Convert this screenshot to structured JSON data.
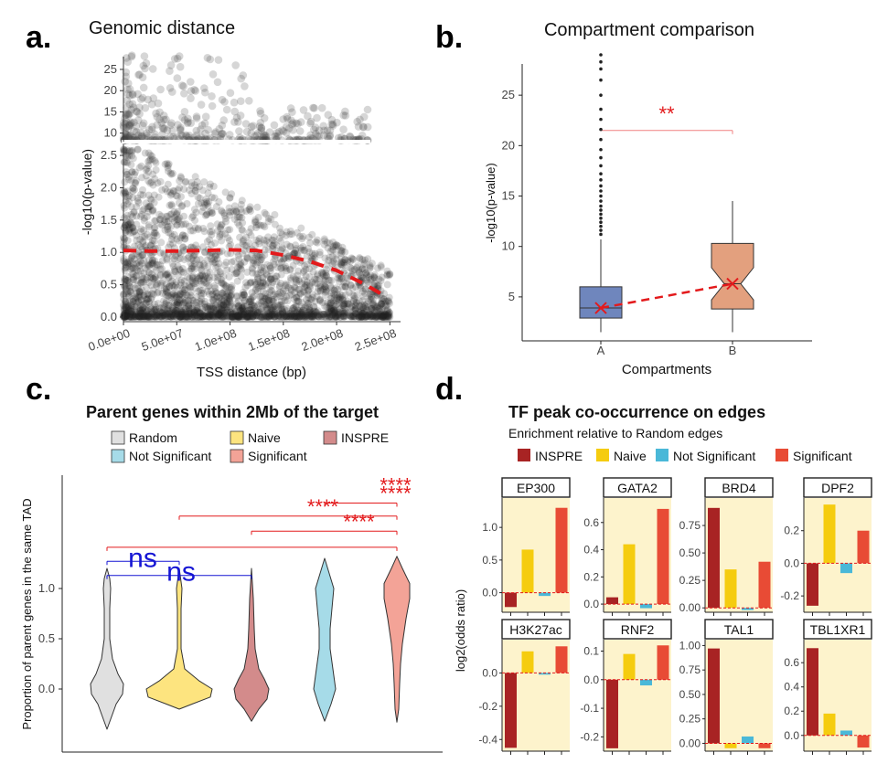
{
  "panels": [
    {
      "letter": "a."
    },
    {
      "letter": "b."
    },
    {
      "letter": "c."
    },
    {
      "letter": "d."
    }
  ],
  "chart_data": [
    {
      "type": "scatter",
      "title": "Genomic distance",
      "xlabel": "TSS distance (bp)",
      "ylabel": "-log10(p-value)",
      "xlim": [
        0,
        250000000
      ],
      "xticks": [
        0,
        50000000,
        100000000,
        150000000,
        200000000,
        250000000
      ],
      "xtick_labels": [
        "0.0e+00",
        "5.0e+07",
        "1.0e+08",
        "1.5e+08",
        "2.0e+08",
        "2.5e+08"
      ],
      "y_axis": "broken",
      "ylim_upper": [
        8,
        28
      ],
      "yticks_upper": [
        10,
        15,
        20,
        25
      ],
      "ylim_lower": [
        0,
        2.6
      ],
      "yticks_lower": [
        0.0,
        0.5,
        1.0,
        1.5,
        2.0,
        2.5
      ],
      "ytick_labels_lower": [
        "0.0",
        "0.5",
        "1.0",
        "1.5",
        "2.0",
        "2.5"
      ],
      "trend_line": {
        "x": [
          0,
          25000000,
          50000000,
          75000000,
          100000000,
          125000000,
          150000000,
          175000000,
          200000000,
          225000000,
          245000000
        ],
        "y": [
          1.03,
          1.02,
          1.02,
          1.03,
          1.04,
          1.03,
          0.96,
          0.86,
          0.72,
          0.52,
          0.33
        ],
        "color": "#e31a1c"
      }
    },
    {
      "type": "box",
      "title": "Compartment comparison",
      "xlabel": "Compartments",
      "ylabel": "-log10(p-value)",
      "categories": [
        "A",
        "B"
      ],
      "ylim": [
        2,
        29
      ],
      "yticks": [
        5,
        10,
        15,
        20,
        25
      ],
      "boxes": [
        {
          "name": "A",
          "min": 1.5,
          "q1": 2.9,
          "median": 3.9,
          "q3": 6.0,
          "max": 10.7,
          "mean": 3.9,
          "color": "#6f86bd",
          "outliers": [
            11.2,
            11.6,
            12.0,
            12.4,
            12.8,
            13.2,
            13.6,
            14.0,
            14.5,
            15.0,
            15.5,
            16.0,
            16.6,
            17.2,
            18.0,
            18.8,
            19.6,
            20.6,
            21.6,
            22.6,
            23.6,
            25.0,
            26.5,
            27.6,
            28.3,
            29.0
          ]
        },
        {
          "name": "B",
          "min": 1.5,
          "q1": 3.8,
          "median": 6.3,
          "q3": 10.3,
          "max": 14.5,
          "mean": 6.3,
          "color": "#e3a07e"
        }
      ],
      "significance": {
        "label": "**",
        "y": 21.5
      }
    },
    {
      "type": "violin",
      "title": "Parent genes within 2Mb of the target",
      "ylabel": "Proportion of parent genes in the same TAD",
      "ylim": [
        -0.4,
        2.1
      ],
      "yticks": [
        0.0,
        0.5,
        1.0
      ],
      "ytick_labels": [
        "0.0",
        "0.5",
        "1.0"
      ],
      "legend": [
        {
          "name": "Random",
          "color": "#e0e0e0"
        },
        {
          "name": "Naive",
          "color": "#fde47f"
        },
        {
          "name": "INSPRE",
          "color": "#d38b8b"
        },
        {
          "name": "Not Significant",
          "color": "#a6dbe8"
        },
        {
          "name": "Significant",
          "color": "#f3a397"
        }
      ],
      "categories": [
        "Random",
        "Naive",
        "INSPRE",
        "Not Significant",
        "Significant"
      ],
      "comparisons": [
        {
          "from": "Random",
          "to": "INSPRE",
          "label": "ns",
          "y": 1.13,
          "color": "#1515d4"
        },
        {
          "from": "Random",
          "to": "Naive",
          "label": "ns",
          "y": 1.27,
          "color": "#1515d4"
        },
        {
          "from": "Random",
          "to": "Significant",
          "label": "",
          "y": 1.41,
          "color": "#e31a1c"
        },
        {
          "from": "INSPRE",
          "to": "Significant",
          "label": "****",
          "y": 1.57,
          "color": "#e31a1c"
        },
        {
          "from": "Naive",
          "to": "Significant",
          "label": "****",
          "y": 1.72,
          "color": "#e31a1c"
        },
        {
          "from": "Not Significant",
          "to": "Significant",
          "label": "****",
          "y": 1.85,
          "color": "#e31a1c"
        },
        {
          "from": "Not Significant",
          "to": "Significant",
          "label": "****",
          "y": 1.93,
          "color": "#e31a1c",
          "label_only": true
        }
      ]
    },
    {
      "type": "bar",
      "title": "TF peak co-occurrence on edges",
      "subtitle": "Enrichment relative to Random edges",
      "ylabel": "log2(odds ratio)",
      "legend": [
        {
          "name": "INSPRE",
          "color": "#a82323"
        },
        {
          "name": "Naive",
          "color": "#f5cc0f"
        },
        {
          "name": "Not Significant",
          "color": "#4ab8d8"
        },
        {
          "name": "Significant",
          "color": "#e84b35"
        }
      ],
      "categories": [
        "INSPRE",
        "Naive",
        "Not Significant",
        "Significant"
      ],
      "facets": [
        {
          "name": "EP300",
          "values": [
            -0.22,
            0.66,
            -0.05,
            1.3
          ],
          "ylim": [
            -0.3,
            1.45
          ],
          "yticks": [
            0.0,
            0.5,
            1.0
          ],
          "ytick_labels": [
            "0.0",
            "0.5",
            "1.0"
          ]
        },
        {
          "name": "GATA2",
          "values": [
            0.05,
            0.44,
            -0.03,
            0.7
          ],
          "ylim": [
            -0.06,
            0.78
          ],
          "yticks": [
            0.0,
            0.2,
            0.4,
            0.6
          ],
          "ytick_labels": [
            "0.0",
            "0.2",
            "0.4",
            "0.6"
          ]
        },
        {
          "name": "BRD4",
          "values": [
            0.91,
            0.35,
            -0.02,
            0.42
          ],
          "ylim": [
            -0.04,
            1.0
          ],
          "yticks": [
            0.0,
            0.25,
            0.5,
            0.75
          ],
          "ytick_labels": [
            "0.00",
            "0.25",
            "0.50",
            "0.75"
          ]
        },
        {
          "name": "DPF2",
          "values": [
            -0.26,
            0.36,
            -0.06,
            0.2
          ],
          "ylim": [
            -0.3,
            0.4
          ],
          "yticks": [
            -0.2,
            0.0,
            0.2
          ],
          "ytick_labels": [
            "-0.2",
            "0.0",
            "0.2"
          ]
        },
        {
          "name": "H3K27ac",
          "values": [
            -0.45,
            0.13,
            -0.01,
            0.16
          ],
          "ylim": [
            -0.47,
            0.2
          ],
          "yticks": [
            -0.4,
            -0.2,
            0.0
          ],
          "ytick_labels": [
            "-0.4",
            "-0.2",
            "0.0"
          ]
        },
        {
          "name": "RNF2",
          "values": [
            -0.24,
            0.09,
            -0.02,
            0.12
          ],
          "ylim": [
            -0.25,
            0.14
          ],
          "yticks": [
            -0.2,
            -0.1,
            0.0,
            0.1
          ],
          "ytick_labels": [
            "-0.2",
            "-0.1",
            "0.0",
            "0.1"
          ]
        },
        {
          "name": "TAL1",
          "values": [
            0.97,
            -0.05,
            0.07,
            -0.05
          ],
          "ylim": [
            -0.08,
            1.06
          ],
          "yticks": [
            0.0,
            0.25,
            0.5,
            0.75,
            1.0
          ],
          "ytick_labels": [
            "0.00",
            "0.25",
            "0.50",
            "0.75",
            "1.00"
          ]
        },
        {
          "name": "TBL1XR1",
          "values": [
            0.72,
            0.18,
            0.04,
            -0.1
          ],
          "ylim": [
            -0.13,
            0.79
          ],
          "yticks": [
            0.0,
            0.2,
            0.4,
            0.6
          ],
          "ytick_labels": [
            "0.0",
            "0.2",
            "0.4",
            "0.6"
          ]
        }
      ]
    }
  ]
}
